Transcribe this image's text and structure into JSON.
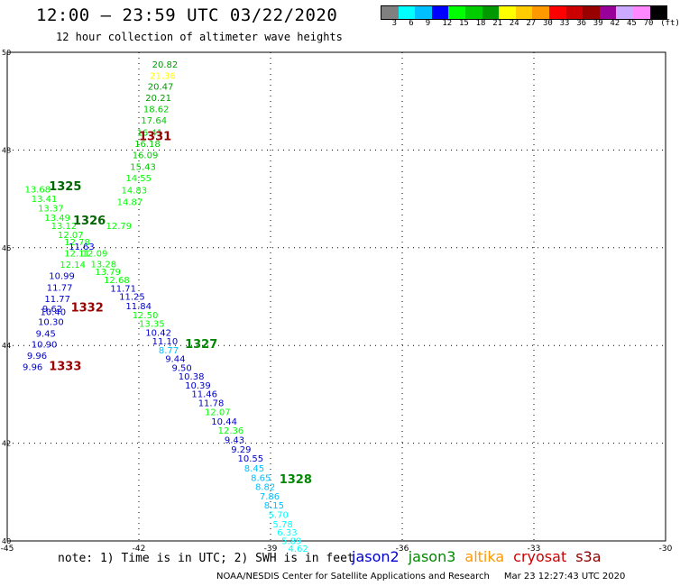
{
  "header": {
    "title": "12:00 – 23:59 UTC 03/22/2020",
    "subtitle": "12 hour collection of altimeter wave heights"
  },
  "color_legend": {
    "colors": [
      "#808080",
      "#00ffff",
      "#00c0ff",
      "#0000ff",
      "#00ff00",
      "#00cc00",
      "#009900",
      "#ffff00",
      "#ffcc00",
      "#ff9900",
      "#ff0000",
      "#cc0000",
      "#990000",
      "#990099",
      "#ccaaff",
      "#ff88ff",
      "#000000"
    ],
    "labels": [
      "3",
      "6",
      "9",
      "12",
      "15",
      "18",
      "21",
      "24",
      "27",
      "30",
      "33",
      "36",
      "39",
      "42",
      "45",
      "70",
      "(ft)"
    ]
  },
  "satellites": [
    {
      "name": "jason2",
      "color": "#0000cc"
    },
    {
      "name": "jason3",
      "color": "#008800"
    },
    {
      "name": "altika",
      "color": "#ff9900"
    },
    {
      "name": "cryosat",
      "color": "#cc0000"
    },
    {
      "name": "s3a",
      "color": "#880000"
    }
  ],
  "note": "note:  1) Time is in UTC;  2) SWH is in feet",
  "footer": {
    "credit": "NOAA/NESDIS Center for Satellite Applications and Research",
    "timestamp": "Mar 23 12:27:43 UTC 2020"
  },
  "chart_data": {
    "type": "scatter",
    "title": "12:00 – 23:59 UTC 03/22/2020",
    "subtitle": "12 hour collection of altimeter wave heights",
    "xlim": [
      -45,
      -30
    ],
    "ylim": [
      40,
      50
    ],
    "x_ticks": [
      -45,
      -42,
      -39,
      -36,
      -33,
      -30
    ],
    "y_ticks": [
      40,
      42,
      44,
      46,
      48,
      50
    ],
    "grid": true,
    "points": [
      {
        "lon": -41.7,
        "lat": 49.69,
        "v": "20.82",
        "c": "#009900"
      },
      {
        "lon": -41.75,
        "lat": 49.46,
        "v": "21.36",
        "c": "#ffff00"
      },
      {
        "lon": -41.8,
        "lat": 49.23,
        "v": "20.47",
        "c": "#009900"
      },
      {
        "lon": -41.85,
        "lat": 49.0,
        "v": "20.21",
        "c": "#009900"
      },
      {
        "lon": -41.9,
        "lat": 48.77,
        "v": "18.62",
        "c": "#00cc00"
      },
      {
        "lon": -41.95,
        "lat": 48.54,
        "v": "17.64",
        "c": "#00cc00"
      },
      {
        "lon": -42.05,
        "lat": 48.29,
        "v": "16.41",
        "c": "#00cc00"
      },
      {
        "lon": -42.1,
        "lat": 48.06,
        "v": "16.18",
        "c": "#00cc00"
      },
      {
        "lon": -42.15,
        "lat": 47.83,
        "v": "16.09",
        "c": "#00cc00"
      },
      {
        "lon": -42.2,
        "lat": 47.59,
        "v": "15.43",
        "c": "#00cc00"
      },
      {
        "lon": -42.3,
        "lat": 47.36,
        "v": "14.55",
        "c": "#00ff00"
      },
      {
        "lon": -44.6,
        "lat": 47.13,
        "v": "13.68",
        "c": "#00ff00"
      },
      {
        "lon": -42.4,
        "lat": 47.11,
        "v": "14.83",
        "c": "#00ff00"
      },
      {
        "lon": -44.45,
        "lat": 46.94,
        "v": "13.41",
        "c": "#00ff00"
      },
      {
        "lon": -42.5,
        "lat": 46.87,
        "v": "14.87",
        "c": "#00ff00"
      },
      {
        "lon": -44.3,
        "lat": 46.74,
        "v": "13.37",
        "c": "#00ff00"
      },
      {
        "lon": -44.15,
        "lat": 46.55,
        "v": "13.49",
        "c": "#00ff00"
      },
      {
        "lon": -44.0,
        "lat": 46.38,
        "v": "13.12",
        "c": "#00ff00"
      },
      {
        "lon": -42.75,
        "lat": 46.38,
        "v": "12.79",
        "c": "#00ff00"
      },
      {
        "lon": -43.85,
        "lat": 46.2,
        "v": "12.07",
        "c": "#00ff00"
      },
      {
        "lon": -43.7,
        "lat": 46.05,
        "v": "12.78",
        "c": "#00ff00"
      },
      {
        "lon": -43.6,
        "lat": 45.96,
        "v": "11.63",
        "c": "#0000ff"
      },
      {
        "lon": -43.7,
        "lat": 45.82,
        "v": "12.11",
        "c": "#00ff00"
      },
      {
        "lon": -43.3,
        "lat": 45.82,
        "v": "12.09",
        "c": "#00ff00"
      },
      {
        "lon": -43.8,
        "lat": 45.59,
        "v": "12.14",
        "c": "#00ff00"
      },
      {
        "lon": -43.1,
        "lat": 45.6,
        "v": "13.28",
        "c": "#00ff00"
      },
      {
        "lon": -43.0,
        "lat": 45.44,
        "v": "13.79",
        "c": "#00ff00"
      },
      {
        "lon": -44.05,
        "lat": 45.36,
        "v": "10.99",
        "c": "#0000cc"
      },
      {
        "lon": -42.8,
        "lat": 45.28,
        "v": "12.68",
        "c": "#00ff00"
      },
      {
        "lon": -44.1,
        "lat": 45.12,
        "v": "11.77",
        "c": "#0000cc"
      },
      {
        "lon": -42.65,
        "lat": 45.1,
        "v": "11.71",
        "c": "#0000cc"
      },
      {
        "lon": -44.15,
        "lat": 44.89,
        "v": "11.77",
        "c": "#0000cc"
      },
      {
        "lon": -42.45,
        "lat": 44.94,
        "v": "11.25",
        "c": "#0000cc"
      },
      {
        "lon": -44.2,
        "lat": 44.69,
        "v": "9.62",
        "c": "#0000cc"
      },
      {
        "lon": -42.3,
        "lat": 44.74,
        "v": "11.84",
        "c": "#0000cc"
      },
      {
        "lon": -44.25,
        "lat": 44.62,
        "v": "10.40",
        "c": "#0000cc"
      },
      {
        "lon": -42.15,
        "lat": 44.56,
        "v": "12.50",
        "c": "#00ff00"
      },
      {
        "lon": -44.3,
        "lat": 44.42,
        "v": "10.30",
        "c": "#0000cc"
      },
      {
        "lon": -42.0,
        "lat": 44.38,
        "v": "13.35",
        "c": "#00ff00"
      },
      {
        "lon": -44.35,
        "lat": 44.18,
        "v": "9.45",
        "c": "#0000cc"
      },
      {
        "lon": -41.85,
        "lat": 44.2,
        "v": "10.42",
        "c": "#0000cc"
      },
      {
        "lon": -44.45,
        "lat": 43.96,
        "v": "10.90",
        "c": "#0000cc"
      },
      {
        "lon": -41.7,
        "lat": 44.02,
        "v": "11.10",
        "c": "#0000cc"
      },
      {
        "lon": -44.55,
        "lat": 43.73,
        "v": "9.96",
        "c": "#0000cc"
      },
      {
        "lon": -41.55,
        "lat": 43.84,
        "v": "8.77",
        "c": "#00c0ff"
      },
      {
        "lon": -44.65,
        "lat": 43.5,
        "v": "9.96",
        "c": "#0000cc"
      },
      {
        "lon": -41.4,
        "lat": 43.66,
        "v": "9.44",
        "c": "#0000cc"
      },
      {
        "lon": -41.25,
        "lat": 43.48,
        "v": "9.50",
        "c": "#0000cc"
      },
      {
        "lon": -41.1,
        "lat": 43.3,
        "v": "10.38",
        "c": "#0000cc"
      },
      {
        "lon": -40.95,
        "lat": 43.12,
        "v": "10.39",
        "c": "#0000cc"
      },
      {
        "lon": -40.8,
        "lat": 42.94,
        "v": "11.46",
        "c": "#0000cc"
      },
      {
        "lon": -40.65,
        "lat": 42.76,
        "v": "11.78",
        "c": "#0000cc"
      },
      {
        "lon": -40.5,
        "lat": 42.57,
        "v": "12.07",
        "c": "#00ff00"
      },
      {
        "lon": -40.35,
        "lat": 42.38,
        "v": "10.44",
        "c": "#0000cc"
      },
      {
        "lon": -40.2,
        "lat": 42.2,
        "v": "12.36",
        "c": "#00ff00"
      },
      {
        "lon": -40.05,
        "lat": 42.0,
        "v": "9.43",
        "c": "#0000cc"
      },
      {
        "lon": -39.9,
        "lat": 41.81,
        "v": "9.29",
        "c": "#0000cc"
      },
      {
        "lon": -39.75,
        "lat": 41.62,
        "v": "10.55",
        "c": "#0000cc"
      },
      {
        "lon": -39.6,
        "lat": 41.42,
        "v": "8.45",
        "c": "#00c0ff"
      },
      {
        "lon": -39.45,
        "lat": 41.23,
        "v": "8.65",
        "c": "#00c0ff"
      },
      {
        "lon": -39.35,
        "lat": 41.04,
        "v": "8.82",
        "c": "#00c0ff"
      },
      {
        "lon": -39.25,
        "lat": 40.85,
        "v": "7.86",
        "c": "#00c0ff"
      },
      {
        "lon": -39.15,
        "lat": 40.66,
        "v": "8.15",
        "c": "#00c0ff"
      },
      {
        "lon": -39.05,
        "lat": 40.47,
        "v": "5.70",
        "c": "#00ffff"
      },
      {
        "lon": -38.95,
        "lat": 40.28,
        "v": "5.78",
        "c": "#00ffff"
      },
      {
        "lon": -38.85,
        "lat": 40.11,
        "v": "6.33",
        "c": "#00ffff"
      },
      {
        "lon": -38.75,
        "lat": 39.94,
        "v": "5.89",
        "c": "#00ffff"
      },
      {
        "lon": -38.6,
        "lat": 39.78,
        "v": "4.62",
        "c": "#00ffff"
      }
    ],
    "track_labels": [
      {
        "lon": -42.0,
        "lat": 48.2,
        "v": "1331",
        "c": "#990000"
      },
      {
        "lon": -44.05,
        "lat": 47.18,
        "v": "1325",
        "c": "#006600"
      },
      {
        "lon": -43.5,
        "lat": 46.48,
        "v": "1326",
        "c": "#006600"
      },
      {
        "lon": -43.55,
        "lat": 44.7,
        "v": "1332",
        "c": "#990000"
      },
      {
        "lon": -40.95,
        "lat": 43.95,
        "v": "1327",
        "c": "#008800"
      },
      {
        "lon": -44.05,
        "lat": 43.5,
        "v": "1333",
        "c": "#990000"
      },
      {
        "lon": -38.8,
        "lat": 41.18,
        "v": "1328",
        "c": "#008800"
      }
    ]
  }
}
